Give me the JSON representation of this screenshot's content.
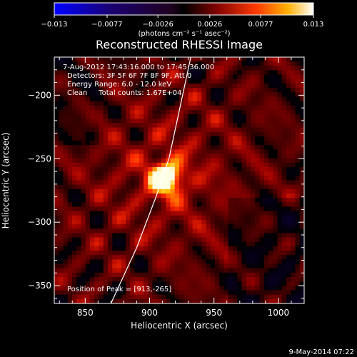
{
  "chart_data": {
    "type": "heatmap",
    "title": "Reconstructed RHESSI Image",
    "xlabel": "Heliocentric X (arcsec)",
    "ylabel": "Heliocentric Y (arcsec)",
    "xlim": [
      826,
      1020
    ],
    "ylim": [
      -364,
      -170
    ],
    "xticks": [
      850,
      900,
      950,
      1000
    ],
    "yticks": [
      -200,
      -250,
      -300,
      -350
    ],
    "colorbar": {
      "min": -0.013,
      "max": 0.013,
      "tick_labels": [
        "-0.013",
        "-0.0077",
        "-0.0026",
        "0.0026",
        "0.0077",
        "0.013"
      ],
      "unit_label": "(photons cm⁻² s⁻¹ asec⁻²)",
      "colormap": "blue-black-red-yellow-white"
    },
    "info_lines": [
      "7-Aug-2012 17:43:16.000 to 17:45:36.000",
      "Detectors: 3F 5F 6F 7F 8F 9F, Att 0",
      "Energy Range: 6.0 - 12.0 keV",
      "Clean     Total counts: 1.67E+04"
    ],
    "peak_label": "Position of Peak = [913,-265]",
    "peak": {
      "x": 913,
      "y": -265
    },
    "limb_points": [
      [
        870,
        -364
      ],
      [
        890,
        -320
      ],
      [
        905,
        -280
      ],
      [
        915,
        -250
      ],
      [
        932,
        -170
      ]
    ],
    "timestamp": "9-May-2014 07:22"
  }
}
